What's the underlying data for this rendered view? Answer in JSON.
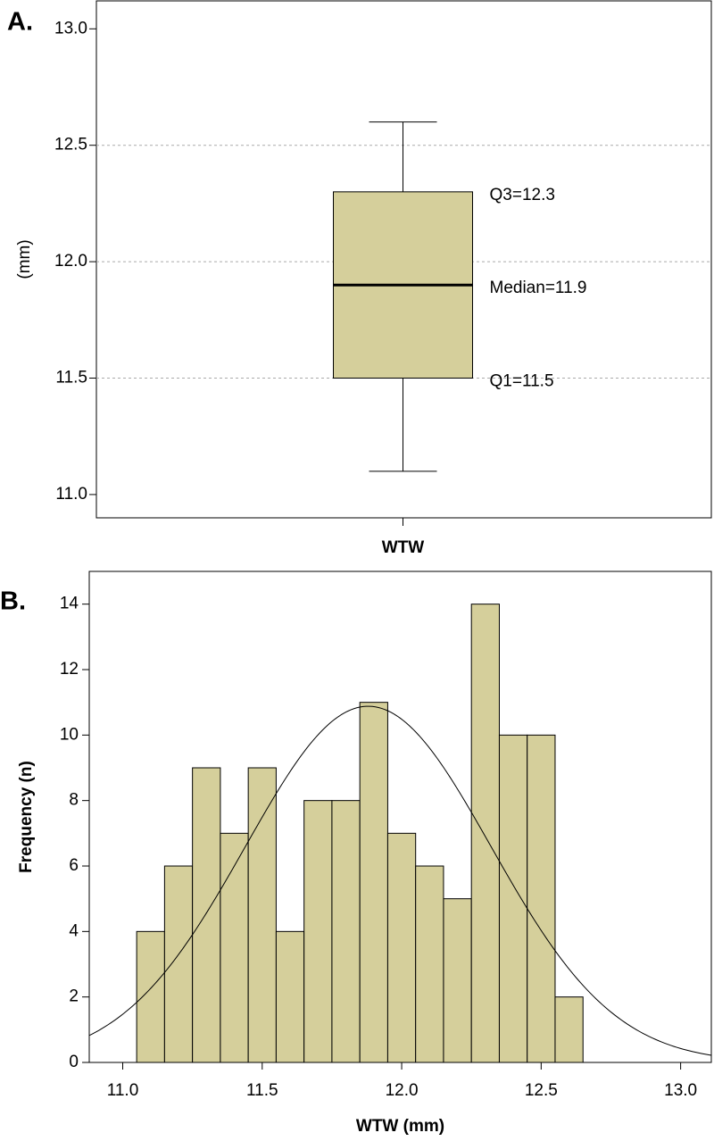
{
  "chart_data": [
    {
      "type": "box",
      "panel_label": "A.",
      "y_label": "(mm)",
      "categories": [
        "WTW"
      ],
      "box": {
        "whisker_low": 11.1,
        "q1": 11.5,
        "median": 11.9,
        "q3": 12.3,
        "whisker_high": 12.6
      },
      "box_labels": {
        "q3": "Q3=12.3",
        "median": "Median=11.9",
        "q1": "Q1=11.5"
      },
      "color": "#d5cf9b",
      "ylim": [
        10.9,
        13.12
      ],
      "yticks": [
        {
          "value": 11,
          "label": "11.0"
        },
        {
          "value": 11.5,
          "label": "11.5"
        },
        {
          "value": 12,
          "label": "12.0"
        },
        {
          "value": 12.5,
          "label": "12.5"
        },
        {
          "value": 13,
          "label": "13.0"
        }
      ],
      "grid": true
    },
    {
      "type": "histogram",
      "panel_label": "B.",
      "x_label": "WTW (mm)",
      "y_label": "Frequency (n)",
      "bins": [
        11.05,
        11.15,
        11.25,
        11.35,
        11.45,
        11.55,
        11.65,
        11.75,
        11.85,
        11.95,
        12.05,
        12.15,
        12.25,
        12.35,
        12.45,
        12.55,
        12.65
      ],
      "values": [
        4,
        6,
        9,
        7,
        9,
        4,
        8,
        8,
        11,
        7,
        6,
        5,
        14,
        10,
        10,
        2
      ],
      "color": "#d5cf9b",
      "normal_curve": {
        "mean": 11.88,
        "sd": 0.44
      },
      "xlim": [
        10.88,
        13.11
      ],
      "xticks": [
        {
          "value": 11,
          "label": "11.0"
        },
        {
          "value": 11.5,
          "label": "11.5"
        },
        {
          "value": 12,
          "label": "12.0"
        },
        {
          "value": 12.5,
          "label": "12.5"
        },
        {
          "value": 13,
          "label": "13.0"
        }
      ],
      "ylim": [
        0,
        15
      ],
      "yticks": [
        0,
        2,
        4,
        6,
        8,
        10,
        12,
        14
      ]
    }
  ]
}
